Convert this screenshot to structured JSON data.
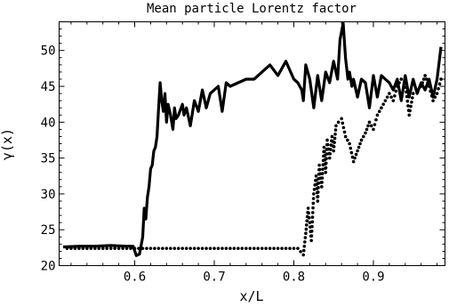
{
  "chart_data": {
    "type": "line",
    "title": "Mean particle Lorentz factor",
    "xlabel": "x/L",
    "ylabel": "γ(x)",
    "xlim": [
      0.505,
      0.99
    ],
    "ylim": [
      20,
      54
    ],
    "xticks": [
      0.6,
      0.7,
      0.8,
      0.9
    ],
    "xtick_labels": [
      "0.6",
      "0.7",
      "0.8",
      "0.9"
    ],
    "yticks": [
      20,
      25,
      30,
      35,
      40,
      45,
      50
    ],
    "ytick_labels": [
      "20",
      "25",
      "30",
      "35",
      "40",
      "45",
      "50"
    ],
    "grid": false,
    "series": [
      {
        "style": "solid",
        "color": "#000000",
        "x": [
          0.51,
          0.53,
          0.55,
          0.57,
          0.59,
          0.598,
          0.602,
          0.606,
          0.61,
          0.612,
          0.614,
          0.616,
          0.618,
          0.62,
          0.622,
          0.624,
          0.626,
          0.628,
          0.63,
          0.632,
          0.634,
          0.636,
          0.638,
          0.64,
          0.642,
          0.645,
          0.648,
          0.65,
          0.652,
          0.655,
          0.66,
          0.662,
          0.665,
          0.67,
          0.675,
          0.68,
          0.685,
          0.69,
          0.695,
          0.7,
          0.705,
          0.71,
          0.715,
          0.72,
          0.73,
          0.74,
          0.75,
          0.76,
          0.77,
          0.78,
          0.79,
          0.8,
          0.805,
          0.81,
          0.812,
          0.815,
          0.82,
          0.825,
          0.83,
          0.835,
          0.84,
          0.845,
          0.85,
          0.855,
          0.858,
          0.862,
          0.865,
          0.868,
          0.87,
          0.873,
          0.875,
          0.878,
          0.88,
          0.885,
          0.89,
          0.895,
          0.9,
          0.905,
          0.91,
          0.915,
          0.92,
          0.925,
          0.93,
          0.935,
          0.94,
          0.945,
          0.95,
          0.955,
          0.96,
          0.965,
          0.97,
          0.975,
          0.98,
          0.985
        ],
        "y": [
          22.6,
          22.7,
          22.7,
          22.8,
          22.7,
          22.7,
          21.4,
          21.6,
          24.0,
          28.0,
          26.5,
          29.5,
          31.0,
          33.5,
          34.0,
          36.0,
          36.5,
          38.0,
          42.0,
          45.5,
          43.0,
          41.5,
          44.0,
          40.0,
          42.5,
          41.0,
          39.0,
          42.0,
          40.5,
          41.0,
          42.5,
          41.0,
          42.0,
          39.5,
          43.0,
          41.5,
          44.5,
          42.0,
          44.0,
          44.5,
          45.0,
          41.5,
          45.5,
          45.0,
          45.5,
          46.0,
          46.0,
          47.0,
          48.0,
          46.5,
          48.5,
          46.0,
          45.5,
          44.5,
          43.0,
          48.0,
          46.0,
          42.0,
          46.5,
          43.0,
          47.0,
          45.5,
          48.5,
          46.0,
          51.5,
          53.8,
          49.0,
          46.0,
          47.0,
          45.0,
          46.0,
          44.5,
          43.5,
          46.0,
          45.5,
          42.0,
          46.5,
          43.5,
          46.5,
          46.0,
          45.5,
          44.5,
          46.0,
          43.0,
          46.5,
          43.5,
          46.0,
          44.0,
          45.5,
          44.5,
          46.0,
          43.5,
          46.0,
          50.5
        ]
      },
      {
        "style": "dotted",
        "color": "#000000",
        "x": [
          0.515,
          0.525,
          0.535,
          0.545,
          0.555,
          0.565,
          0.575,
          0.585,
          0.595,
          0.605,
          0.615,
          0.625,
          0.635,
          0.645,
          0.655,
          0.665,
          0.675,
          0.685,
          0.695,
          0.705,
          0.715,
          0.725,
          0.735,
          0.745,
          0.755,
          0.765,
          0.775,
          0.785,
          0.795,
          0.805,
          0.812,
          0.815,
          0.818,
          0.82,
          0.822,
          0.825,
          0.828,
          0.83,
          0.832,
          0.835,
          0.838,
          0.84,
          0.842,
          0.845,
          0.848,
          0.85,
          0.853,
          0.856,
          0.86,
          0.865,
          0.87,
          0.875,
          0.88,
          0.885,
          0.89,
          0.895,
          0.9,
          0.905,
          0.91,
          0.915,
          0.92,
          0.925,
          0.93,
          0.935,
          0.94,
          0.945,
          0.95,
          0.955,
          0.96,
          0.965,
          0.97,
          0.975,
          0.98,
          0.985
        ],
        "y": [
          22.4,
          22.4,
          22.4,
          22.4,
          22.4,
          22.4,
          22.4,
          22.4,
          22.4,
          22.4,
          22.4,
          22.4,
          22.4,
          22.4,
          22.4,
          22.4,
          22.4,
          22.4,
          22.4,
          22.4,
          22.4,
          22.4,
          22.4,
          22.4,
          22.4,
          22.4,
          22.4,
          22.4,
          22.4,
          22.4,
          21.5,
          24.5,
          28.0,
          26.0,
          23.5,
          30.0,
          32.5,
          29.0,
          34.0,
          31.0,
          36.5,
          33.0,
          37.5,
          35.0,
          38.0,
          36.0,
          39.5,
          40.0,
          40.5,
          38.0,
          37.0,
          34.5,
          36.0,
          37.5,
          38.5,
          40.0,
          39.0,
          41.0,
          42.0,
          43.0,
          44.0,
          43.0,
          45.0,
          46.0,
          45.5,
          41.0,
          44.0,
          44.5,
          45.0,
          46.5,
          45.0,
          43.0,
          44.0,
          46.0
        ]
      }
    ]
  }
}
